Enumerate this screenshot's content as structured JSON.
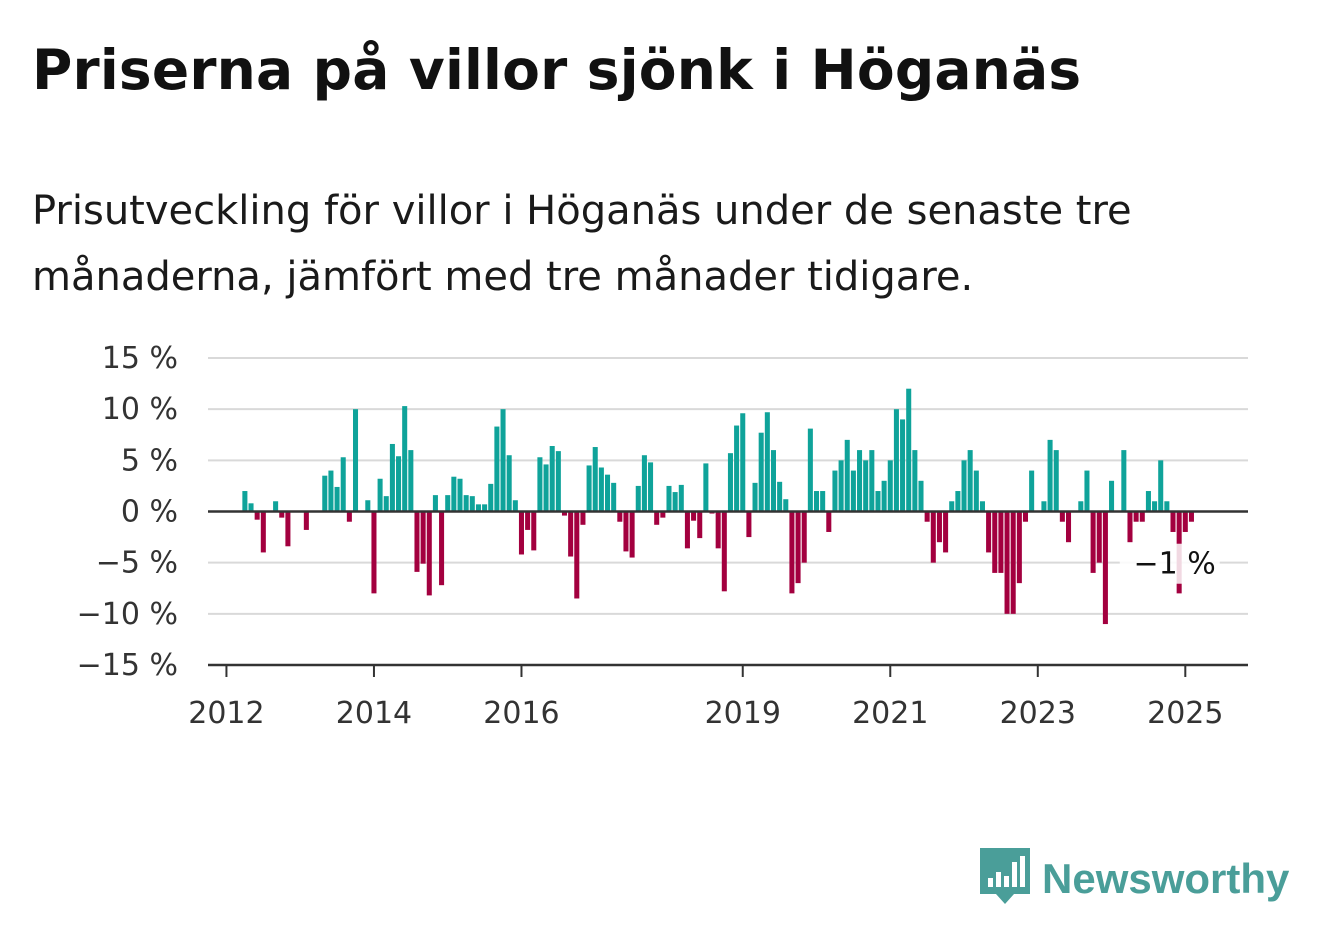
{
  "title": "Priserna på villor sjönk i Höganäs",
  "subtitle": "Prisutveckling för villor i Höganäs under de senaste tre månaderna, jämfört med tre månader tidigare.",
  "brand": {
    "name": "Newsworthy",
    "icon": "newsworthy-logo-icon",
    "color": "#4a9e99"
  },
  "colors": {
    "positive": "#0fa39a",
    "negative": "#a3003f",
    "grid": "#d9d9d9",
    "zero_line": "#333333"
  },
  "chart_data": {
    "type": "bar",
    "xlabel": "",
    "ylabel": "",
    "ylim": [
      -15,
      15
    ],
    "yticks": [
      15,
      10,
      5,
      0,
      -5,
      -10,
      -15
    ],
    "ytick_labels": [
      "15 %",
      "10 %",
      "5 %",
      "0 %",
      "−5 %",
      "−10 %",
      "−15 %"
    ],
    "xticks": [
      2012,
      2014,
      2016,
      2019,
      2021,
      2023,
      2025
    ],
    "xlim": [
      2011.75,
      2025.85
    ],
    "grid": true,
    "annotation": {
      "text": "−1 %",
      "x": 2025.25,
      "y": -1
    },
    "start": 2012.25,
    "step": 0.0833333,
    "series": [
      {
        "values": [
          2,
          0.8,
          -0.8,
          -4,
          0,
          1,
          -0.6,
          -3.4,
          0,
          0,
          -1.8,
          0,
          0,
          3.5,
          4,
          2.4,
          5.3,
          -1,
          10,
          0,
          1.1,
          -8,
          3.2,
          1.5,
          6.6,
          5.4,
          10.3,
          6,
          -5.9,
          -5.1,
          -8.2,
          1.6,
          -7.2,
          1.6,
          3.4,
          3.2,
          1.6,
          1.5,
          0.7,
          0.7,
          2.7,
          8.3,
          10,
          5.5,
          1.1,
          -4.2,
          -1.8,
          -3.8,
          5.3,
          4.6,
          6.4,
          5.9,
          -0.4,
          -4.4,
          -8.5,
          -1.3,
          4.5,
          6.3,
          4.3,
          3.6,
          2.8,
          -1,
          -3.9,
          -4.5,
          2.5,
          5.5,
          4.8,
          -1.3,
          -0.6,
          2.5,
          1.9,
          2.6,
          -3.6,
          -0.9,
          -2.6,
          4.7,
          -0.2,
          -3.6,
          -7.8,
          5.7,
          8.4,
          9.6,
          -2.5,
          2.8,
          7.7,
          9.7,
          6,
          2.9,
          1.2,
          -8,
          -7,
          -5,
          8.1,
          2,
          2,
          -2,
          4,
          5,
          7,
          4,
          6,
          5,
          6,
          2,
          3,
          5,
          10,
          9,
          12,
          6,
          3,
          -1,
          -5,
          -3,
          -4,
          1,
          2,
          5,
          6,
          4,
          1,
          -4,
          -6,
          -6,
          -10,
          -10,
          -7,
          -1,
          4,
          0,
          1,
          7,
          6,
          -1,
          -3,
          0,
          1,
          4,
          -6,
          -5,
          -11,
          3,
          0,
          6,
          -3,
          -1,
          -1,
          2,
          1,
          5,
          1,
          -2,
          -8,
          -2,
          -1
        ]
      }
    ]
  }
}
